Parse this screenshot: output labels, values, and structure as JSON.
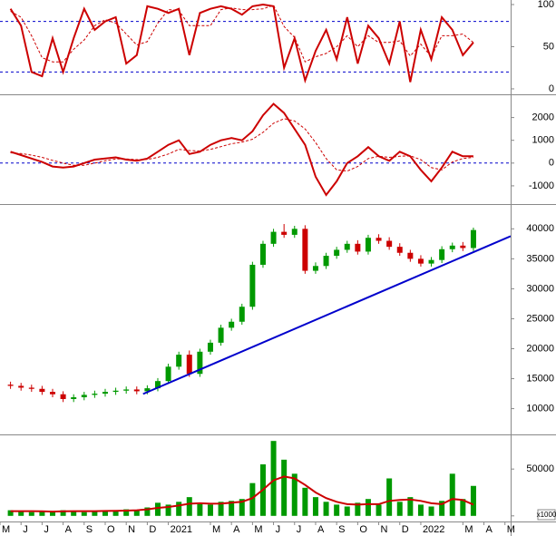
{
  "chart_data": [
    {
      "type": "line",
      "x": [
        0.5,
        1,
        1.5,
        2,
        2.5,
        3,
        3.5,
        4,
        4.5,
        5,
        5.5,
        6,
        6.5,
        7,
        7.5,
        8,
        8.5,
        9,
        9.5,
        10,
        10.5,
        11,
        11.5,
        12,
        12.5,
        13,
        13.5,
        14,
        14.5,
        15,
        15.5,
        16,
        16.5,
        17,
        17.5,
        18,
        18.5,
        19,
        19.5,
        20,
        20.5,
        21,
        21.5,
        22,
        22.5
      ],
      "series": [
        {
          "color": "#cc0000",
          "style": "solid",
          "values": [
            95,
            75,
            20,
            15,
            60,
            20,
            60,
            95,
            70,
            80,
            85,
            30,
            40,
            98,
            95,
            90,
            95,
            40,
            90,
            95,
            98,
            95,
            88,
            98,
            100,
            98,
            25,
            60,
            10,
            45,
            70,
            35,
            85,
            30,
            75,
            60,
            30,
            80,
            8,
            70,
            35,
            85,
            70,
            40,
            55
          ]
        },
        {
          "color": "#cc0000",
          "style": "dashed",
          "values": [
            92,
            85,
            63,
            37,
            32,
            32,
            47,
            58,
            75,
            82,
            78,
            65,
            52,
            56,
            78,
            94,
            93,
            75,
            75,
            75,
            94,
            96,
            94,
            94,
            95,
            99,
            74,
            61,
            32,
            38,
            42,
            50,
            63,
            50,
            63,
            55,
            55,
            57,
            39,
            53,
            38,
            63,
            63,
            65,
            55
          ]
        }
      ],
      "xlim": [
        0,
        24.27
      ],
      "ylim": [
        -6.5,
        105.4
      ],
      "yticks": [
        0,
        50,
        100
      ],
      "hlines": [
        80,
        20
      ],
      "hline_color": "#0000cc"
    },
    {
      "type": "line",
      "x": [
        0.5,
        1,
        1.5,
        2,
        2.5,
        3,
        3.5,
        4,
        4.5,
        5,
        5.5,
        6,
        6.5,
        7,
        7.5,
        8,
        8.5,
        9,
        9.5,
        10,
        10.5,
        11,
        11.5,
        12,
        12.5,
        13,
        13.5,
        14,
        14.5,
        15,
        15.5,
        16,
        16.5,
        17,
        17.5,
        18,
        18.5,
        19,
        19.5,
        20,
        20.5,
        21,
        21.5,
        22,
        22.5
      ],
      "series": [
        {
          "color": "#cc0000",
          "style": "solid",
          "values": [
            500,
            350,
            200,
            50,
            -150,
            -200,
            -150,
            0,
            150,
            200,
            250,
            150,
            100,
            200,
            500,
            800,
            1000,
            400,
            500,
            800,
            1000,
            1100,
            1000,
            1400,
            2100,
            2600,
            2200,
            1500,
            800,
            -600,
            -1400,
            -800,
            0,
            300,
            700,
            300,
            100,
            500,
            300,
            -300,
            -800,
            -200,
            500,
            300,
            300
          ]
        },
        {
          "color": "#cc0000",
          "style": "dashed",
          "values": [
            450,
            420,
            350,
            250,
            120,
            0,
            -100,
            -100,
            0,
            100,
            180,
            180,
            150,
            160,
            250,
            400,
            600,
            550,
            530,
            600,
            720,
            850,
            920,
            1050,
            1350,
            1750,
            1950,
            1850,
            1500,
            900,
            200,
            -300,
            -350,
            -150,
            200,
            300,
            250,
            300,
            320,
            150,
            -200,
            -300,
            50,
            200,
            250
          ]
        }
      ],
      "xlim": [
        0,
        24.27
      ],
      "ylim": [
        -1800,
        2980
      ],
      "yticks": [
        -1000,
        0,
        1000,
        2000
      ],
      "hlines": [
        0
      ],
      "hline_color": "#0000cc"
    },
    {
      "type": "candlestick",
      "x": [
        0.5,
        1,
        1.5,
        2,
        2.5,
        3,
        3.5,
        4,
        4.5,
        5,
        5.5,
        6,
        6.5,
        7,
        7.5,
        8,
        8.5,
        9,
        9.5,
        10,
        10.5,
        11,
        11.5,
        12,
        12.5,
        13,
        13.5,
        14,
        14.5,
        15,
        15.5,
        16,
        16.5,
        17,
        17.5,
        18,
        18.5,
        19,
        19.5,
        20,
        20.5,
        21,
        21.5,
        22,
        22.5
      ],
      "open": [
        14000,
        13800,
        13500,
        13300,
        12800,
        12400,
        11600,
        11900,
        12300,
        12500,
        12800,
        13000,
        13200,
        12900,
        13400,
        14600,
        17000,
        19000,
        15800,
        19500,
        21000,
        23500,
        24500,
        27000,
        34000,
        37500,
        39500,
        39000,
        40000,
        33000,
        33800,
        35500,
        36500,
        37500,
        36200,
        38500,
        38000,
        37000,
        36000,
        35000,
        34200,
        34800,
        36600,
        37200,
        36800
      ],
      "high": [
        14500,
        14300,
        14000,
        13800,
        13300,
        12900,
        12400,
        12800,
        13000,
        13300,
        13500,
        13700,
        13700,
        13900,
        15100,
        17500,
        19500,
        19700,
        20000,
        21500,
        24000,
        25000,
        27500,
        34500,
        38000,
        40000,
        40800,
        40500,
        40600,
        34400,
        36000,
        37000,
        38000,
        38100,
        39000,
        39100,
        38600,
        37600,
        36500,
        35600,
        35300,
        37100,
        37700,
        37800,
        40200
      ],
      "low": [
        13300,
        13000,
        12800,
        12300,
        11900,
        11100,
        11100,
        11400,
        11800,
        12000,
        12300,
        12500,
        12400,
        12400,
        12900,
        14100,
        16500,
        15300,
        15300,
        19000,
        20500,
        23000,
        24000,
        26500,
        33500,
        37000,
        38500,
        38500,
        32500,
        32500,
        33300,
        35000,
        36000,
        35700,
        35700,
        37500,
        36500,
        35500,
        34500,
        33700,
        33700,
        34300,
        36100,
        36300,
        36300
      ],
      "close": [
        13800,
        13500,
        13300,
        12800,
        12400,
        11600,
        11900,
        12300,
        12500,
        12800,
        13000,
        13200,
        12900,
        13400,
        14600,
        17000,
        19000,
        15800,
        19500,
        21000,
        23500,
        24500,
        27000,
        34000,
        37500,
        39500,
        39000,
        40000,
        33000,
        33800,
        35500,
        36500,
        37500,
        36200,
        38500,
        38000,
        37000,
        36000,
        35000,
        34200,
        34800,
        36600,
        37200,
        36800,
        39800
      ],
      "up_color": "#009900",
      "down_color": "#cc0000",
      "xlim": [
        0,
        24.27
      ],
      "ylim": [
        5700,
        43980
      ],
      "yticks": [
        10000,
        15000,
        20000,
        25000,
        30000,
        35000,
        40000
      ],
      "trendline": {
        "x": [
          6.8,
          24.27
        ],
        "y": [
          12450,
          38780
        ],
        "color": "#0000cc"
      }
    },
    {
      "type": "bar",
      "x": [
        0.5,
        1,
        1.5,
        2,
        2.5,
        3,
        3.5,
        4,
        4.5,
        5,
        5.5,
        6,
        6.5,
        7,
        7.5,
        8,
        8.5,
        9,
        9.5,
        10,
        10.5,
        11,
        11.5,
        12,
        12.5,
        13,
        13.5,
        14,
        14.5,
        15,
        15.5,
        16,
        16.5,
        17,
        17.5,
        18,
        18.5,
        19,
        19.5,
        20,
        20.5,
        21,
        21.5,
        22,
        22.5
      ],
      "values": [
        6000,
        5000,
        4000,
        5000,
        4000,
        6000,
        5000,
        4000,
        5000,
        6000,
        5000,
        7000,
        6000,
        9000,
        14000,
        12000,
        15000,
        20000,
        14000,
        12000,
        15000,
        16000,
        18000,
        35000,
        55000,
        80000,
        60000,
        45000,
        30000,
        20000,
        15000,
        12000,
        10000,
        14000,
        18000,
        12000,
        40000,
        15000,
        20000,
        12000,
        10000,
        16000,
        45000,
        18000,
        32000
      ],
      "color": "#009900",
      "series": [
        {
          "color": "#cc0000",
          "style": "solid",
          "values": [
            5000,
            5000,
            5000,
            4800,
            4600,
            4800,
            5000,
            5000,
            5000,
            5200,
            5400,
            5600,
            6000,
            7000,
            8500,
            9500,
            11000,
            13000,
            13500,
            13000,
            13200,
            14000,
            15000,
            19000,
            28000,
            38000,
            42000,
            40000,
            33000,
            25000,
            19000,
            15000,
            12500,
            12000,
            12500,
            12500,
            16000,
            17000,
            17500,
            16000,
            13500,
            12500,
            18000,
            17000,
            12000
          ]
        }
      ],
      "xlim": [
        0,
        24.27
      ],
      "ylim": [
        -6000,
        86000
      ],
      "yticks": [
        0,
        50000
      ],
      "annotation": "x1000",
      "xticks": [
        {
          "value": 0,
          "label": "M"
        },
        {
          "value": 1,
          "label": "J"
        },
        {
          "value": 2,
          "label": "J"
        },
        {
          "value": 3,
          "label": "A"
        },
        {
          "value": 4,
          "label": "S"
        },
        {
          "value": 5,
          "label": "O"
        },
        {
          "value": 6,
          "label": "N"
        },
        {
          "value": 7,
          "label": "D"
        },
        {
          "value": 8,
          "label": "2021"
        },
        {
          "value": 10,
          "label": "M"
        },
        {
          "value": 11,
          "label": "A"
        },
        {
          "value": 12,
          "label": "M"
        },
        {
          "value": 13,
          "label": "J"
        },
        {
          "value": 14,
          "label": "J"
        },
        {
          "value": 15,
          "label": "A"
        },
        {
          "value": 16,
          "label": "S"
        },
        {
          "value": 17,
          "label": "O"
        },
        {
          "value": 18,
          "label": "N"
        },
        {
          "value": 19,
          "label": "D"
        },
        {
          "value": 20,
          "label": "2022"
        },
        {
          "value": 22,
          "label": "M"
        },
        {
          "value": 23,
          "label": "A"
        },
        {
          "value": 24,
          "label": "M"
        }
      ]
    }
  ]
}
